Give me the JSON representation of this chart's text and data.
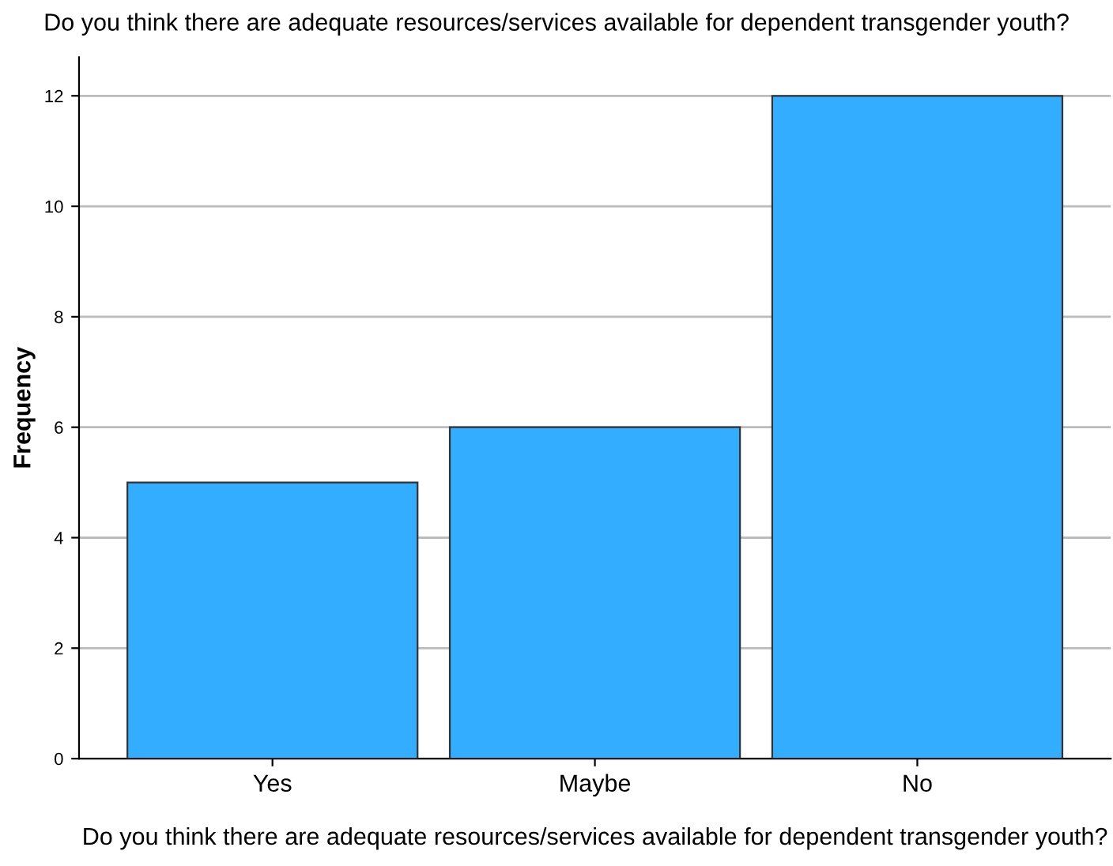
{
  "chart_data": {
    "type": "bar",
    "title": "Do you think there are adequate resources/services available for dependent transgender youth?",
    "xlabel": "Do you think there are adequate resources/services available for dependent transgender youth?",
    "ylabel": "Frequency",
    "categories": [
      "Yes",
      "Maybe",
      "No"
    ],
    "values": [
      5,
      6,
      12
    ],
    "color": "#33adff",
    "ylim": [
      0,
      12.7
    ],
    "yticks": [
      0,
      2,
      4,
      6,
      8,
      10,
      12
    ],
    "grid": "y"
  }
}
